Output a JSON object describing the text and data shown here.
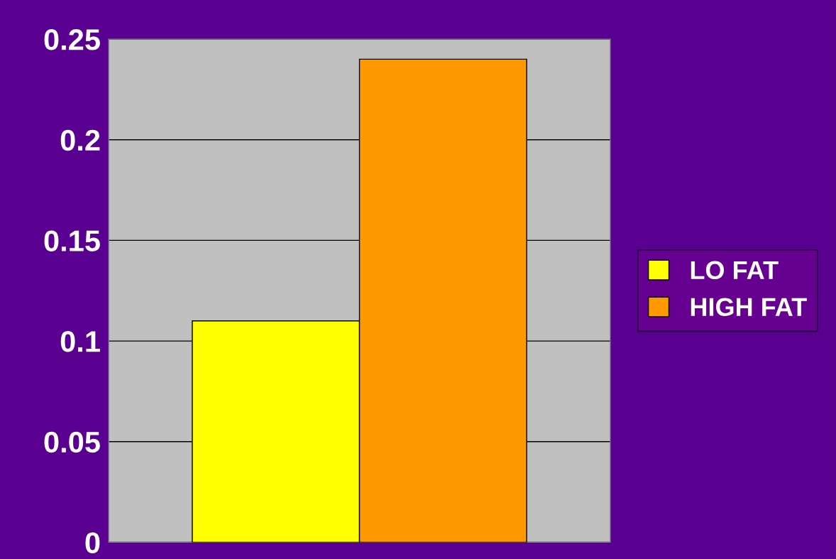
{
  "chart_data": {
    "type": "bar",
    "categories": [
      null
    ],
    "series": [
      {
        "name": "LO FAT",
        "color": "#ffff00",
        "values": [
          0.11
        ]
      },
      {
        "name": "HIGH FAT",
        "color": "#ff9900",
        "values": [
          0.24
        ]
      }
    ],
    "ylim": [
      0,
      0.25
    ],
    "yticks": [
      0,
      0.05,
      0.1,
      0.15,
      0.2,
      0.25
    ],
    "grid": "y",
    "legend": "right"
  }
}
